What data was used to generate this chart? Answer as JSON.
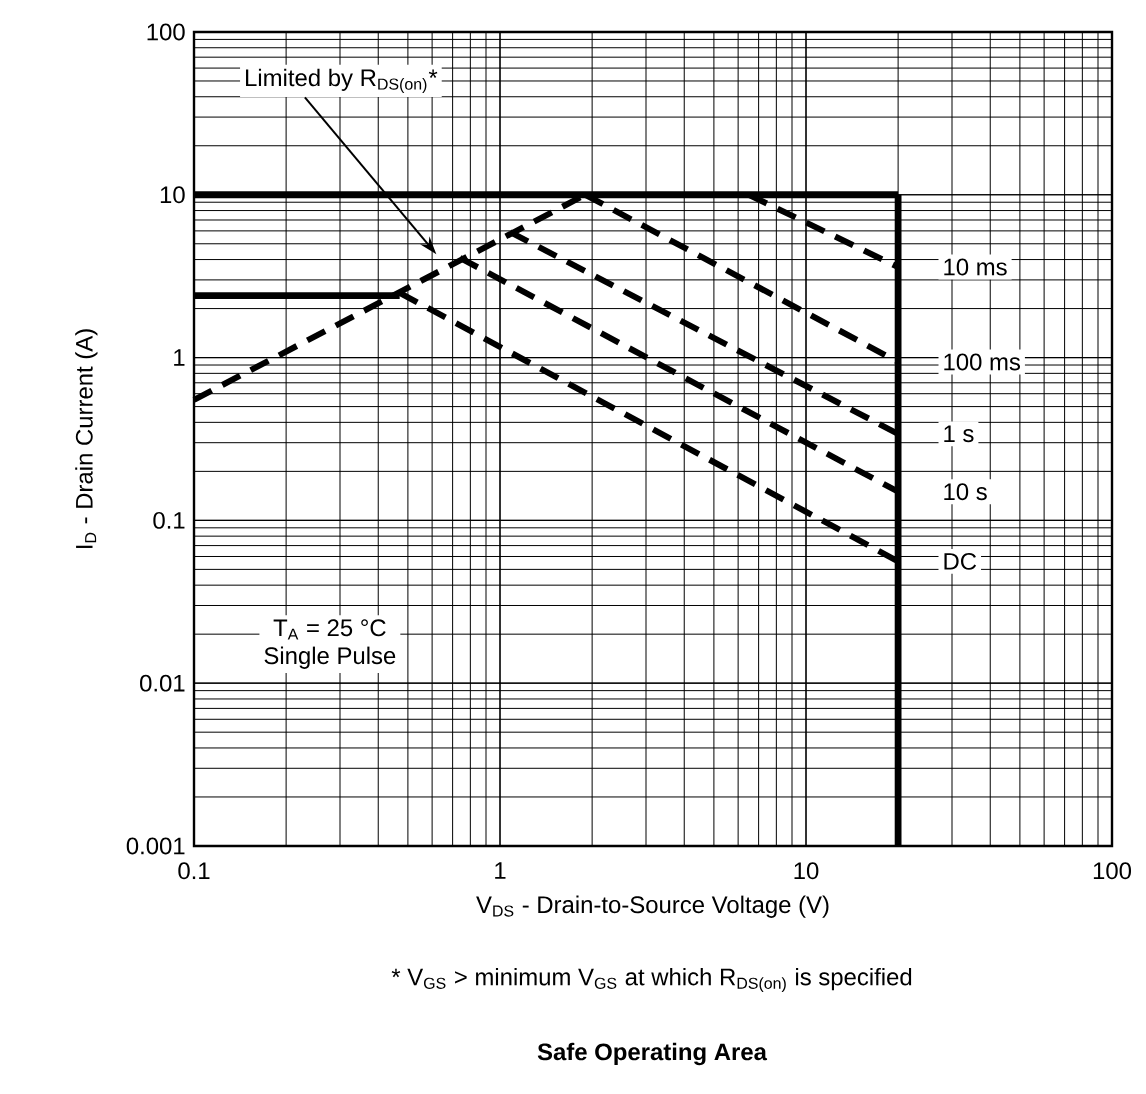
{
  "chart_data": {
    "type": "line",
    "title": "Safe Operating Area",
    "xlabel": "V$_{DS}$ - Drain-to-Source Voltage (V)",
    "ylabel": "I$_{D}$ - Drain Current (A)",
    "annotations": [
      "Limited by R$_{DS(on)}$*",
      "T$_{A}$ = 25 °C",
      "Single Pulse",
      "* V$_{GS}$ > minimum V$_{GS}$ at which R$_{DS(on)}$ is specified"
    ],
    "log": "xy",
    "grid": true,
    "legend": false,
    "marker": "none",
    "xlim": [
      0.1,
      100
    ],
    "ylim": [
      0.001,
      100
    ],
    "xticks": [
      0.1,
      1,
      10,
      100
    ],
    "yticks": [
      0.001,
      0.01,
      0.1,
      1,
      10,
      100
    ],
    "series": [
      {
        "color": "#000000",
        "line_style": "dashed",
        "x": [
          0.1,
          1.9
        ],
        "values": [
          0.55,
          10
        ]
      },
      {
        "color": "#000000",
        "line_style": "solid",
        "x": [
          0.1,
          20
        ],
        "values": [
          10,
          10
        ]
      },
      {
        "color": "#000000",
        "line_style": "solid",
        "x": [
          0.1,
          0.47
        ],
        "values": [
          2.4,
          2.4
        ]
      },
      {
        "color": "#000000",
        "line_style": "solid",
        "x": [
          20,
          20
        ],
        "values": [
          10,
          0.001
        ]
      },
      {
        "name": "10 ms",
        "color": "#000000",
        "line_style": "dashed",
        "x": [
          6.5,
          20
        ],
        "values": [
          10,
          3.6
        ]
      },
      {
        "name": "100 ms",
        "color": "#000000",
        "line_style": "dashed",
        "x": [
          1.9,
          20
        ],
        "values": [
          10,
          0.94
        ]
      },
      {
        "name": "1 s",
        "color": "#000000",
        "line_style": "dashed",
        "x": [
          1.08,
          20
        ],
        "values": [
          5.9,
          0.34
        ]
      },
      {
        "name": "10 s",
        "color": "#000000",
        "line_style": "dashed",
        "x": [
          0.74,
          20
        ],
        "values": [
          4.1,
          0.15
        ]
      },
      {
        "name": "DC",
        "color": "#000000",
        "line_style": "dashed",
        "x": [
          0.47,
          20
        ],
        "values": [
          2.5,
          0.056
        ]
      }
    ]
  }
}
